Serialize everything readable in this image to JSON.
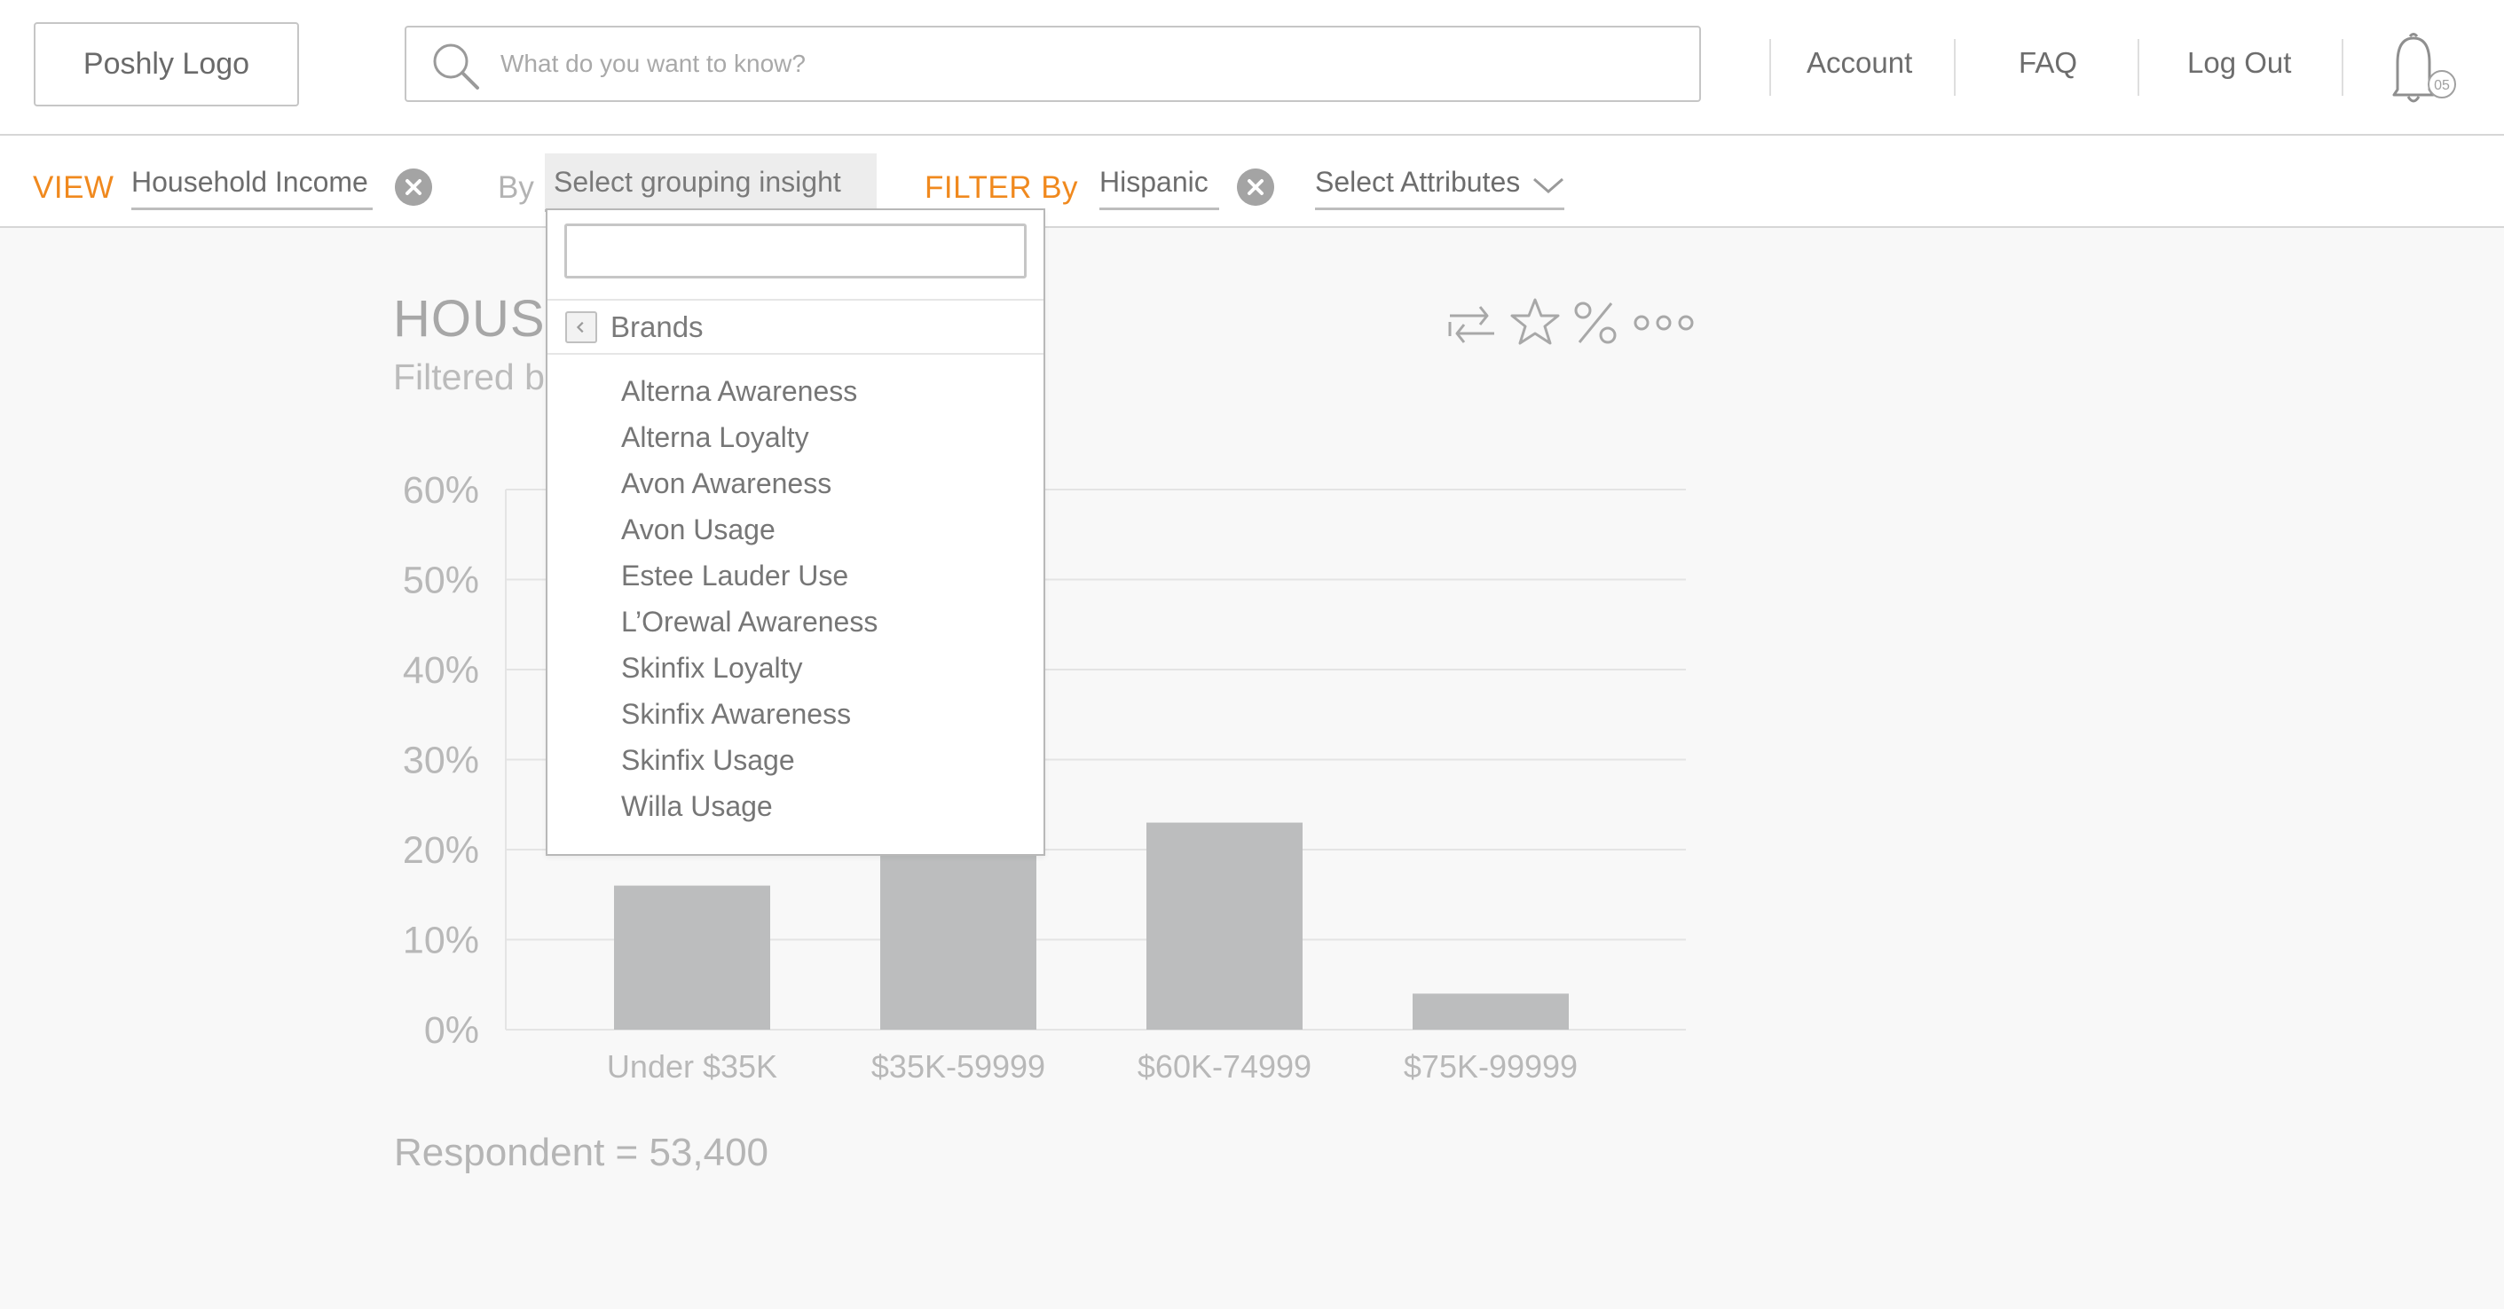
{
  "header": {
    "logo_label": "Poshly Logo",
    "search_placeholder": "What do you want to know?",
    "nav": {
      "account": "Account",
      "faq": "FAQ",
      "logout": "Log Out"
    },
    "notification_count": "05"
  },
  "filter_bar": {
    "view_label": "VIEW",
    "view_value": "Household Income",
    "by_label": "By",
    "grouping_placeholder": "Select grouping insight",
    "filter_label": "FILTER By",
    "filter_value": "Hispanic",
    "attributes_placeholder": "Select Attributes"
  },
  "dropdown": {
    "category": "Brands",
    "items": [
      "Alterna Awareness",
      "Alterna Loyalty",
      "Avon Awareness",
      "Avon Usage",
      "Estee Lauder Use",
      "L’Orewal Awareness",
      "Skinfix Loyalty",
      "Skinfix Awareness",
      "Skinfix Usage",
      "Willa Usage"
    ]
  },
  "main": {
    "title_visible": "HOUS",
    "subtitle_visible": "Filtered b",
    "tools": [
      "swap-icon",
      "star-icon",
      "percent-icon",
      "more-icon"
    ],
    "respondent": "Respondent = 53,400"
  },
  "chart_data": {
    "type": "bar",
    "categories": [
      "Under $35K",
      "$35K-59999",
      "$60K-74999",
      "$75K-99999"
    ],
    "values": [
      16,
      20,
      23,
      4
    ],
    "ylim": [
      0,
      60
    ],
    "yticks": [
      "0%",
      "10%",
      "20%",
      "30%",
      "40%",
      "50%",
      "60%"
    ],
    "grid": true,
    "bar_color": "#bcbdbe"
  },
  "colors": {
    "accent": "#f0891e",
    "bar": "#bcbdbe"
  }
}
